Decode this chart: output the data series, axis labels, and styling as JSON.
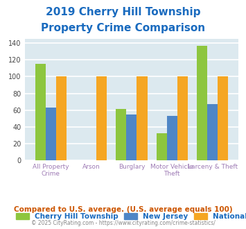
{
  "title_line1": "2019 Cherry Hill Township",
  "title_line2": "Property Crime Comparison",
  "title_color": "#1a6bbf",
  "categories": [
    "All Property Crime",
    "Arson",
    "Burglary",
    "Motor Vehicle Theft",
    "Larceny & Theft"
  ],
  "series": {
    "Cherry Hill Township": [
      115,
      0,
      61,
      32,
      137
    ],
    "New Jersey": [
      63,
      0,
      55,
      53,
      67
    ],
    "National": [
      100,
      100,
      100,
      100,
      100
    ]
  },
  "colors": {
    "Cherry Hill Township": "#8dc63f",
    "New Jersey": "#4f86c6",
    "National": "#f5a623"
  },
  "ylim": [
    0,
    145
  ],
  "yticks": [
    0,
    20,
    40,
    60,
    80,
    100,
    120,
    140
  ],
  "background_color": "#dce9ef",
  "plot_bg_color": "#dce9ef",
  "fig_bg_color": "#ffffff",
  "grid_color": "#ffffff",
  "xlabel_color": "#9e7bb5",
  "legend_text_color": "#1a6bbf",
  "footnote1": "Compared to U.S. average. (U.S. average equals 100)",
  "footnote2": "© 2025 CityRating.com - https://www.cityrating.com/crime-statistics/",
  "footnote1_color": "#cc5500",
  "footnote2_color": "#888888"
}
